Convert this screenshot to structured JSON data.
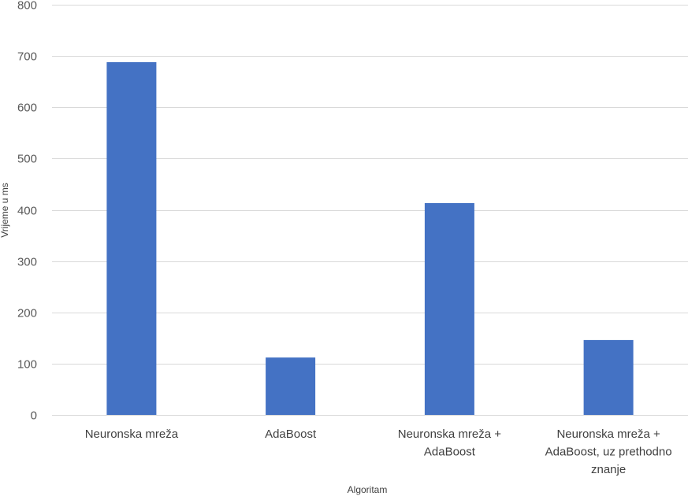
{
  "chart_data": {
    "type": "bar",
    "title": "",
    "categories": [
      [
        "Neuronska mreža"
      ],
      [
        "AdaBoost"
      ],
      [
        "Neuronska mreža +",
        "AdaBoost"
      ],
      [
        "Neuronska mreža +",
        "AdaBoost, uz prethodno",
        "znanje"
      ]
    ],
    "values": [
      688,
      112,
      413,
      146
    ],
    "xlabel": "Algoritam",
    "ylabel": "Vrijeme u ms",
    "ylim": [
      0,
      800
    ],
    "yticks": [
      0,
      100,
      200,
      300,
      400,
      500,
      600,
      700,
      800
    ],
    "grid": true,
    "legend": "none",
    "bar_color": "#4472c4"
  }
}
